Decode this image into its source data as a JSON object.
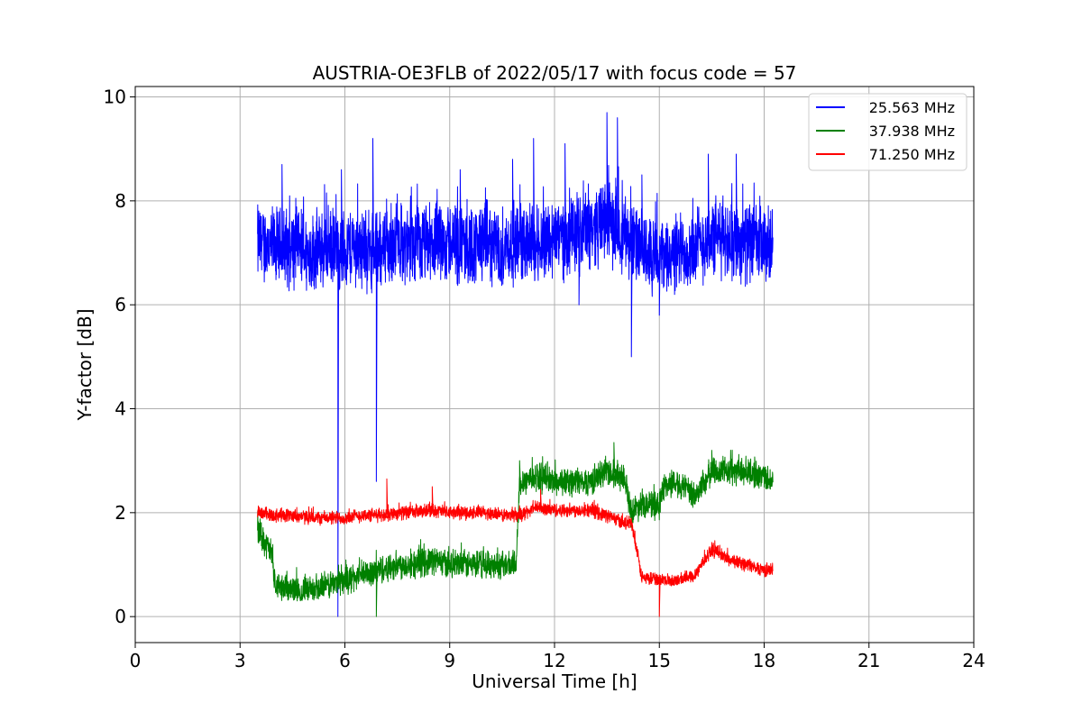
{
  "chart_data": {
    "type": "line",
    "title": "AUSTRIA-OE3FLB of 2022/05/17 with focus code = 57",
    "xlabel": "Universal Time [h]",
    "ylabel": "Y-factor [dB]",
    "xlim": [
      0,
      24
    ],
    "ylim": [
      -0.5,
      10.2
    ],
    "xticks": [
      0,
      3,
      6,
      9,
      12,
      15,
      18,
      21,
      24
    ],
    "yticks": [
      0,
      2,
      4,
      6,
      8,
      10
    ],
    "grid": true,
    "legend_position": "top-right",
    "series": [
      {
        "name": "25.563 MHz",
        "color": "#0000ff",
        "x_start": 3.5,
        "x_end": 18.25,
        "x": [
          3.5,
          4.0,
          4.5,
          5.0,
          5.5,
          5.8,
          6.0,
          6.5,
          6.9,
          7.0,
          7.5,
          8.0,
          8.5,
          9.0,
          9.5,
          10.0,
          10.5,
          11.0,
          11.5,
          12.0,
          12.5,
          13.0,
          13.5,
          14.0,
          14.5,
          15.0,
          15.5,
          16.0,
          16.5,
          17.0,
          17.5,
          18.0,
          18.25
        ],
        "center": [
          7.2,
          7.1,
          7.1,
          7.0,
          7.1,
          7.0,
          7.1,
          7.1,
          7.0,
          7.1,
          7.2,
          7.1,
          7.2,
          7.2,
          7.1,
          7.2,
          7.1,
          7.2,
          7.2,
          7.3,
          7.3,
          7.5,
          7.6,
          7.4,
          7.0,
          6.9,
          7.0,
          7.1,
          7.3,
          7.3,
          7.2,
          7.1,
          7.1
        ],
        "spread": 0.7,
        "min_band": 6.2,
        "peaks": [
          [
            4.2,
            8.7
          ],
          [
            5.9,
            8.6
          ],
          [
            6.8,
            9.2
          ],
          [
            9.3,
            8.6
          ],
          [
            10.8,
            8.8
          ],
          [
            11.4,
            9.2
          ],
          [
            12.3,
            9.1
          ],
          [
            13.5,
            9.7
          ],
          [
            13.8,
            9.6
          ],
          [
            14.5,
            8.5
          ],
          [
            16.4,
            8.9
          ],
          [
            17.2,
            8.9
          ]
        ],
        "dips": [
          [
            5.8,
            0.0
          ],
          [
            6.9,
            2.6
          ],
          [
            12.7,
            6.0
          ],
          [
            14.2,
            5.0
          ],
          [
            15.0,
            5.8
          ]
        ]
      },
      {
        "name": "37.938 MHz",
        "color": "#008000",
        "x_start": 3.5,
        "x_end": 18.25,
        "x": [
          3.5,
          3.9,
          4.0,
          4.5,
          5.0,
          5.5,
          6.0,
          6.5,
          7.0,
          7.5,
          8.0,
          8.5,
          9.0,
          9.5,
          10.0,
          10.5,
          10.9,
          11.0,
          11.5,
          12.0,
          12.5,
          13.0,
          13.5,
          14.0,
          14.2,
          14.5,
          15.0,
          15.1,
          15.5,
          16.0,
          16.5,
          17.0,
          17.5,
          18.0,
          18.25
        ],
        "center": [
          1.7,
          1.2,
          0.6,
          0.5,
          0.5,
          0.6,
          0.7,
          0.8,
          0.9,
          1.0,
          1.0,
          1.1,
          1.0,
          1.0,
          1.0,
          1.0,
          1.0,
          2.6,
          2.7,
          2.6,
          2.6,
          2.6,
          2.8,
          2.7,
          2.0,
          2.2,
          2.1,
          2.5,
          2.6,
          2.3,
          2.8,
          2.8,
          2.8,
          2.7,
          2.6
        ],
        "spread": 0.25,
        "min_band": 0.3,
        "peaks": [
          [
            13.7,
            3.35
          ],
          [
            16.5,
            3.2
          ],
          [
            11.0,
            3.0
          ]
        ],
        "dips": [
          [
            6.9,
            0.0
          ]
        ]
      },
      {
        "name": "71.250 MHz",
        "color": "#ff0000",
        "x_start": 3.5,
        "x_end": 18.25,
        "x": [
          3.5,
          4.0,
          4.5,
          5.0,
          5.5,
          6.0,
          6.5,
          7.0,
          7.5,
          8.0,
          8.5,
          9.0,
          9.5,
          10.0,
          10.5,
          11.0,
          11.5,
          12.0,
          12.5,
          13.0,
          13.5,
          14.0,
          14.2,
          14.5,
          15.0,
          15.5,
          16.0,
          16.5,
          17.0,
          17.5,
          18.0,
          18.25
        ],
        "center": [
          2.0,
          1.95,
          1.95,
          1.9,
          1.9,
          1.9,
          1.95,
          1.95,
          2.0,
          2.0,
          2.05,
          2.0,
          2.0,
          2.0,
          1.95,
          1.95,
          2.1,
          2.05,
          2.05,
          2.05,
          1.95,
          1.8,
          1.8,
          0.75,
          0.7,
          0.7,
          0.8,
          1.3,
          1.1,
          1.0,
          0.9,
          0.9
        ],
        "spread": 0.12,
        "min_band": 0.6,
        "peaks": [
          [
            7.2,
            2.65
          ],
          [
            8.5,
            2.5
          ],
          [
            11.6,
            2.45
          ]
        ],
        "dips": [
          [
            15.0,
            0.0
          ]
        ]
      }
    ]
  }
}
